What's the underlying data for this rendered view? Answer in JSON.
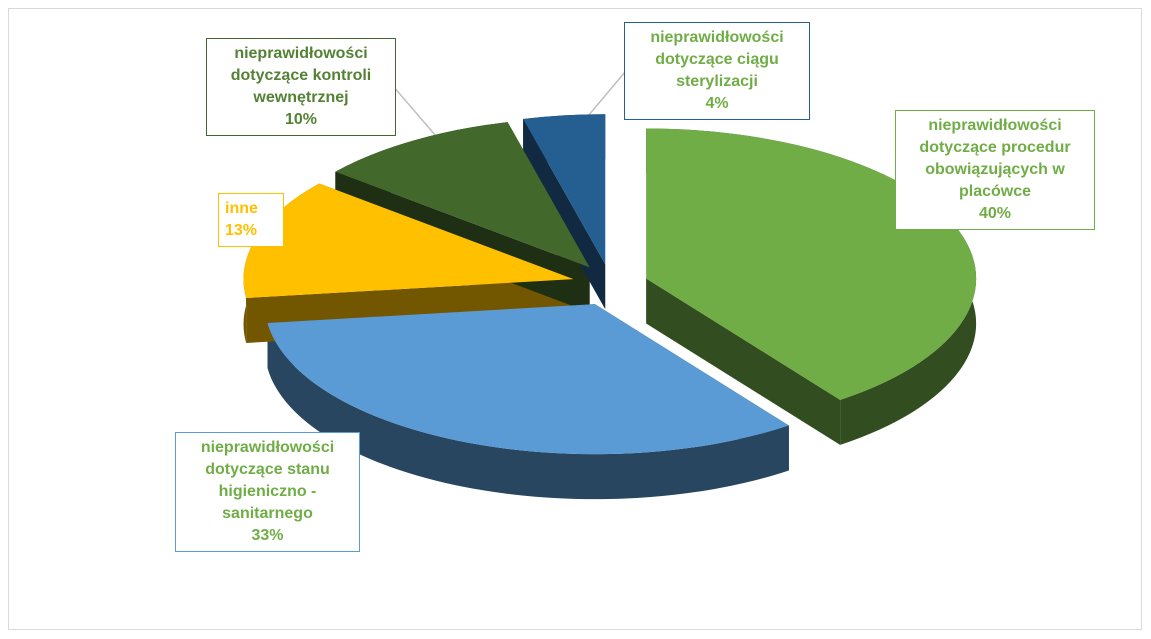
{
  "chart_data": {
    "type": "pie",
    "categories": [
      "nieprawidłowości dotyczące procedur obowiązujących w placówce",
      "nieprawidłowości dotyczące stanu higieniczno - sanitarnego",
      "inne",
      "nieprawidłowości dotyczące kontroli wewnętrznej",
      "nieprawidłowości dotyczące ciągu sterylizacji"
    ],
    "values": [
      40,
      33,
      13,
      10,
      4
    ],
    "value_labels": [
      "40%",
      "33%",
      "13%",
      "10%",
      "4%"
    ],
    "colors": [
      "#70ad47",
      "#5b9bd5",
      "#ffc000",
      "#43682b",
      "#255e91"
    ]
  }
}
